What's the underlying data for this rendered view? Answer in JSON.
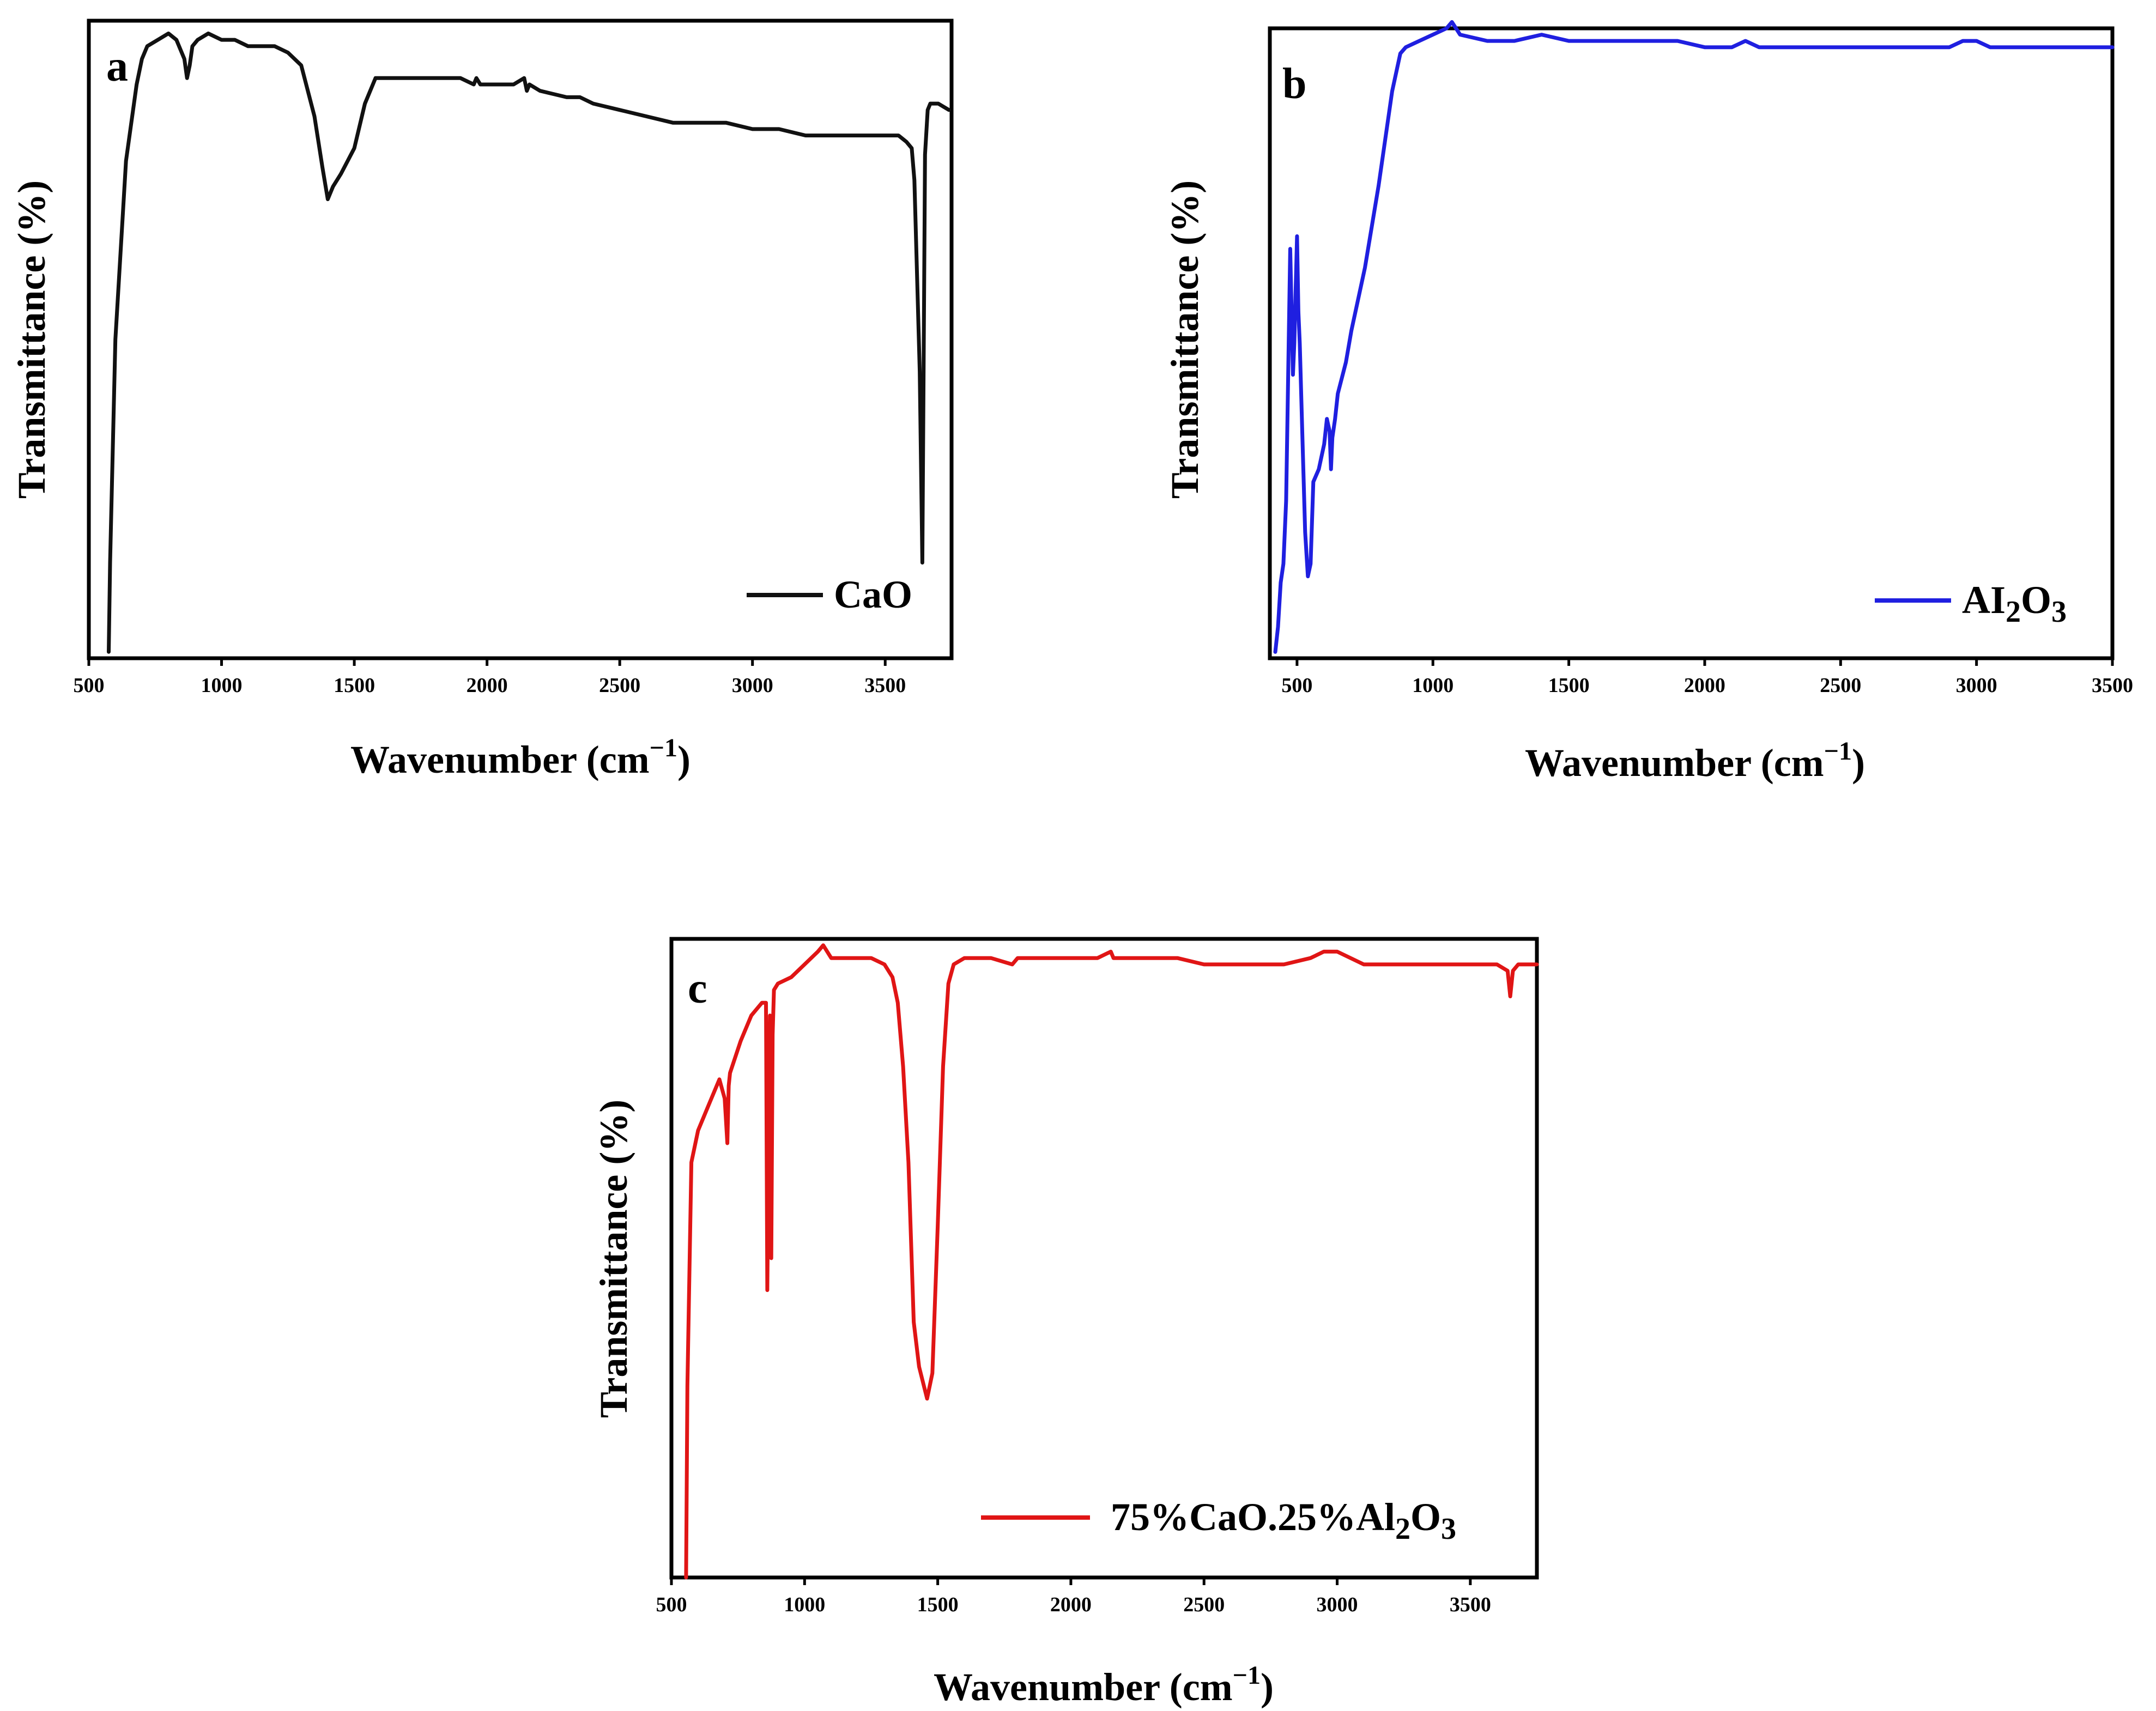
{
  "chart_data": [
    {
      "panel": "a",
      "type": "line",
      "xlabel": "Wavenumber (cm",
      "xlabel_sup": "−1",
      "xlabel_close": ")",
      "ylabel": "Transmittance (%)",
      "xlim": [
        500,
        3750
      ],
      "ylim": [
        0,
        100
      ],
      "xticks": [
        500,
        1000,
        1500,
        2000,
        2500,
        3000,
        3500
      ],
      "legend": {
        "label": "CaO",
        "parts": [
          {
            "t": "CaO"
          }
        ],
        "position": "bottom-right"
      },
      "series": [
        {
          "name": "CaO",
          "color": "#111111",
          "x": [
            575,
            580,
            600,
            640,
            680,
            700,
            720,
            760,
            800,
            830,
            860,
            870,
            880,
            890,
            910,
            950,
            1000,
            1050,
            1100,
            1150,
            1200,
            1250,
            1300,
            1350,
            1380,
            1400,
            1420,
            1450,
            1500,
            1540,
            1580,
            1600,
            1700,
            1800,
            1900,
            1950,
            1960,
            1975,
            2000,
            2100,
            2140,
            2150,
            2160,
            2200,
            2300,
            2350,
            2400,
            2500,
            2600,
            2700,
            2800,
            2900,
            3000,
            3100,
            3200,
            3300,
            3400,
            3500,
            3550,
            3580,
            3600,
            3610,
            3620,
            3630,
            3640,
            3650,
            3660,
            3670,
            3700,
            3740
          ],
          "y": [
            1,
            15,
            50,
            78,
            90,
            94,
            96,
            97,
            98,
            97,
            94,
            91,
            93,
            96,
            97,
            98,
            97,
            97,
            96,
            96,
            96,
            95,
            93,
            85,
            77,
            72,
            74,
            76,
            80,
            87,
            91,
            91,
            91,
            91,
            91,
            90,
            91,
            90,
            90,
            90,
            91,
            89,
            90,
            89,
            88,
            88,
            87,
            86,
            85,
            84,
            84,
            84,
            83,
            83,
            82,
            82,
            82,
            82,
            82,
            81,
            80,
            75,
            60,
            45,
            15,
            79,
            86,
            87,
            87,
            86
          ]
        }
      ]
    },
    {
      "panel": "b",
      "type": "line",
      "xlabel": "Wavenumber (cm",
      "xlabel_sup": "−1",
      "xlabel_close": ")",
      "ylabel": "Transmittance (%)",
      "xlim": [
        400,
        3500
      ],
      "ylim": [
        0,
        100
      ],
      "xticks": [
        500,
        1000,
        1500,
        2000,
        2500,
        3000,
        3500
      ],
      "legend": {
        "label": "Al2O3",
        "parts": [
          {
            "t": "AI"
          },
          {
            "t": "2",
            "sub": true
          },
          {
            "t": "O"
          },
          {
            "t": "3",
            "sub": true
          }
        ],
        "position": "bottom-right"
      },
      "series": [
        {
          "name": "Al2O3",
          "color": "#1f1fe0",
          "x": [
            420,
            430,
            440,
            450,
            460,
            475,
            485,
            490,
            500,
            505,
            510,
            520,
            530,
            540,
            550,
            560,
            580,
            600,
            610,
            620,
            625,
            630,
            640,
            650,
            680,
            700,
            750,
            800,
            850,
            880,
            900,
            950,
            1000,
            1050,
            1070,
            1100,
            1200,
            1300,
            1400,
            1500,
            1600,
            1700,
            1800,
            1900,
            2000,
            2100,
            2150,
            2200,
            2300,
            2400,
            2500,
            2600,
            2700,
            2800,
            2900,
            2950,
            3000,
            3050,
            3100,
            3200,
            3300,
            3400,
            3500
          ],
          "y": [
            1,
            5,
            12,
            15,
            25,
            65,
            45,
            50,
            67,
            55,
            50,
            35,
            20,
            13,
            15,
            28,
            30,
            34,
            38,
            36,
            30,
            35,
            38,
            42,
            47,
            52,
            62,
            75,
            90,
            96,
            97,
            98,
            99,
            100,
            101,
            99,
            98,
            98,
            99,
            98,
            98,
            98,
            98,
            98,
            97,
            97,
            98,
            97,
            97,
            97,
            97,
            97,
            97,
            97,
            97,
            98,
            98,
            97,
            97,
            97,
            97,
            97,
            97
          ]
        }
      ]
    },
    {
      "panel": "c",
      "type": "line",
      "xlabel": "Wavenumber (cm",
      "xlabel_sup": "−1",
      "xlabel_close": ")",
      "ylabel": "Transmittance (%)",
      "xlim": [
        500,
        3750
      ],
      "ylim": [
        0,
        100
      ],
      "xticks": [
        500,
        1000,
        1500,
        2000,
        2500,
        3000,
        3500
      ],
      "legend": {
        "label": "75%CaO.25%Al2O3",
        "parts": [
          {
            "t": "75%CaO.25%Al"
          },
          {
            "t": "2",
            "sub": true
          },
          {
            "t": "O"
          },
          {
            "t": "3",
            "sub": true
          }
        ],
        "position": "bottom-right"
      },
      "series": [
        {
          "name": "75%CaO.25%Al2O3",
          "color": "#e01515",
          "x": [
            555,
            560,
            575,
            600,
            640,
            680,
            700,
            710,
            715,
            720,
            760,
            800,
            840,
            855,
            860,
            870,
            875,
            880,
            885,
            900,
            950,
            1000,
            1050,
            1070,
            1100,
            1150,
            1200,
            1250,
            1300,
            1330,
            1350,
            1370,
            1390,
            1410,
            1430,
            1460,
            1480,
            1500,
            1520,
            1540,
            1560,
            1600,
            1700,
            1780,
            1800,
            1900,
            2000,
            2100,
            2150,
            2160,
            2200,
            2300,
            2400,
            2500,
            2600,
            2700,
            2800,
            2900,
            2950,
            3000,
            3100,
            3200,
            3300,
            3400,
            3500,
            3600,
            3640,
            3650,
            3660,
            3680,
            3700,
            3750
          ],
          "y": [
            0,
            30,
            65,
            70,
            74,
            78,
            75,
            68,
            77,
            79,
            84,
            88,
            90,
            90,
            45,
            88,
            50,
            85,
            92,
            93,
            94,
            96,
            98,
            99,
            97,
            97,
            97,
            97,
            96,
            94,
            90,
            80,
            65,
            40,
            33,
            28,
            32,
            55,
            80,
            93,
            96,
            97,
            97,
            96,
            97,
            97,
            97,
            97,
            98,
            97,
            97,
            97,
            97,
            96,
            96,
            96,
            96,
            97,
            98,
            98,
            96,
            96,
            96,
            96,
            96,
            96,
            95,
            91,
            95,
            96,
            96,
            96
          ]
        }
      ]
    }
  ]
}
